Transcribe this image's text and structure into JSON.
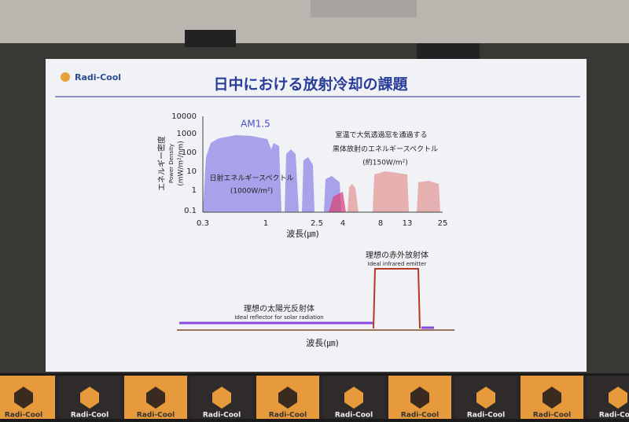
{
  "slide": {
    "logo": "Radi-Cool",
    "title": "日中における放射冷却の課題",
    "spectrum": {
      "y_label": "エネルギー密度",
      "y_label_en": "Power Density",
      "y_unit": "(mW/m²/nm)",
      "yticks": [
        "10000",
        "1000",
        "100",
        "10",
        "1",
        "0.1"
      ],
      "xticks": [
        "0.3",
        "1",
        "2.5",
        "4",
        "8",
        "13",
        "25"
      ],
      "x_label": "波長(㎛)",
      "am_label": "AM1.5",
      "solar_label": "日射エネルギースペクトル",
      "solar_power": "(1000W/m²)",
      "blackbody_label": [
        "室温で大気透過窓を通過する",
        "黒体放射のエネルギースペクトル",
        "(約150W/m²)"
      ]
    },
    "ideal": {
      "emitter_label": "理想の赤外放射体",
      "emitter_en": "Ideal infrared emitter",
      "reflector_label": "理想の太陽光反射体",
      "reflector_en": "Ideal reflector for solar radiation",
      "x_label": "波長(㎛)"
    }
  },
  "banner": {
    "logo": "Radi-Cool"
  }
}
